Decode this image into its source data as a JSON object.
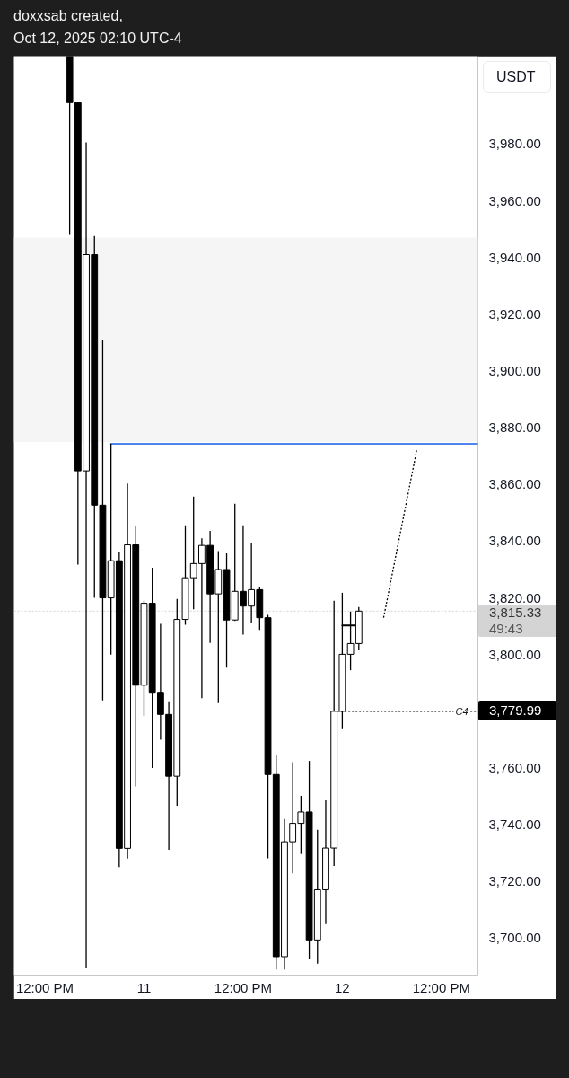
{
  "chart_data": {
    "type": "candlestick",
    "title": "doxxsab created,",
    "subtitle": "Oct 12, 2025 02:10 UTC-4",
    "ylabel": "USDT",
    "x": [
      "2025-10-10T15:00",
      "2025-10-10T16:00",
      "2025-10-10T17:00",
      "2025-10-10T18:00",
      "2025-10-10T19:00",
      "2025-10-10T20:00",
      "2025-10-10T21:00",
      "2025-10-10T22:00",
      "2025-10-10T23:00",
      "2025-10-11T00:00",
      "2025-10-11T01:00",
      "2025-10-11T02:00",
      "2025-10-11T03:00",
      "2025-10-11T04:00",
      "2025-10-11T05:00",
      "2025-10-11T06:00",
      "2025-10-11T07:00",
      "2025-10-11T08:00",
      "2025-10-11T09:00",
      "2025-10-11T10:00",
      "2025-10-11T11:00",
      "2025-10-11T12:00",
      "2025-10-11T13:00",
      "2025-10-11T14:00",
      "2025-10-11T15:00",
      "2025-10-11T16:00",
      "2025-10-11T17:00",
      "2025-10-11T18:00",
      "2025-10-11T19:00",
      "2025-10-11T20:00",
      "2025-10-11T21:00",
      "2025-10-11T22:00",
      "2025-10-11T23:00",
      "2025-10-12T00:00",
      "2025-10-12T01:00",
      "2025-10-12T02:00"
    ],
    "ohlc": [
      [
        4011,
        4011,
        3948,
        3994.6
      ],
      [
        3994.6,
        3994.6,
        3831.7,
        3864.8
      ],
      [
        3864.8,
        3980.6,
        3689.5,
        3941
      ],
      [
        3941,
        3947.6,
        3820,
        3852.7
      ],
      [
        3852.7,
        3911.1,
        3783.8,
        3820
      ],
      [
        3820,
        3874.3,
        3800,
        3833.1
      ],
      [
        3833.1,
        3836,
        3725.1,
        3731.7
      ],
      [
        3731.7,
        3860.3,
        3728.1,
        3838.7
      ],
      [
        3838.7,
        3845.5,
        3753.5,
        3789.2
      ],
      [
        3789.2,
        3819,
        3778.4,
        3818.1
      ],
      [
        3818.1,
        3830.6,
        3760,
        3786.7
      ],
      [
        3786.7,
        3810.8,
        3770,
        3778.9
      ],
      [
        3778.9,
        3783.5,
        3731.2,
        3757.1
      ],
      [
        3757.1,
        3819.6,
        3746.7,
        3812.4
      ],
      [
        3812.4,
        3845.6,
        3810.5,
        3827.1
      ],
      [
        3827.1,
        3855.7,
        3816,
        3832.1
      ],
      [
        3832.1,
        3841,
        3784.6,
        3838.5
      ],
      [
        3838.5,
        3843.6,
        3804.1,
        3821.4
      ],
      [
        3821.4,
        3836.5,
        3782.9,
        3830
      ],
      [
        3830,
        3835.7,
        3795.4,
        3812.2
      ],
      [
        3812.2,
        3853.2,
        3811.9,
        3822.3
      ],
      [
        3822.3,
        3845.6,
        3807,
        3817.1
      ],
      [
        3817.1,
        3839.4,
        3811.1,
        3822.9
      ],
      [
        3822.9,
        3824,
        3808.7,
        3813
      ],
      [
        3813,
        3814,
        3728.2,
        3757.7
      ],
      [
        3757.7,
        3764.7,
        3689,
        3693.5
      ],
      [
        3693.5,
        3742,
        3689,
        3734
      ],
      [
        3734,
        3762.1,
        3722.9,
        3740.5
      ],
      [
        3740.5,
        3750.2,
        3729.7,
        3744.5
      ],
      [
        3744.5,
        3762.5,
        3692.7,
        3699.4
      ],
      [
        3699.4,
        3738.2,
        3691,
        3717.1
      ],
      [
        3717.1,
        3748.6,
        3705,
        3731.8
      ],
      [
        3731.8,
        3819,
        3725.5,
        3780
      ],
      [
        3780,
        3821.8,
        3774,
        3800.1
      ],
      [
        3800.1,
        3815.2,
        3794.5,
        3803.9
      ],
      [
        3803.9,
        3816.8,
        3801.5,
        3815.33
      ]
    ],
    "color": "#000000",
    "colors": [
      "#000000",
      "#000000",
      "#ffffff",
      "#000000",
      "#000000",
      "#ffffff",
      "#000000",
      "#ffffff",
      "#000000",
      "#ffffff",
      "#000000",
      "#000000",
      "#000000",
      "#ffffff",
      "#ffffff",
      "#ffffff",
      "#ffffff",
      "#000000",
      "#ffffff",
      "#000000",
      "#ffffff",
      "#000000",
      "#ffffff",
      "#000000",
      "#000000",
      "#000000",
      "#ffffff",
      "#ffffff",
      "#ffffff",
      "#000000",
      "#ffffff",
      "#ffffff",
      "#ffffff",
      "#ffffff",
      "#ffffff",
      "#ffffff"
    ],
    "series": [
      {
        "type": "line",
        "x": [
          "2025-10-10T20:00",
          "2025-10-12T16:25"
        ],
        "values": [
          3874.3,
          3874.3
        ],
        "color": "#4f84ec"
      },
      {
        "type": "line",
        "name": "C4",
        "x": [
          "2025-10-11T23:00",
          "2025-10-12T16:25"
        ],
        "values": [
          3779.99,
          3779.99
        ],
        "color": "#000000",
        "line_style": "dotted",
        "value_labels": [
          null,
          "3,779.99"
        ]
      },
      {
        "type": "line",
        "x": [
          "2025-10-12T05:00",
          "2025-10-12T09:00"
        ],
        "values": [
          3813,
          3872
        ],
        "color": "#000000",
        "line_style": "dotted"
      },
      {
        "type": "line",
        "x": [
          "2025-10-12T00:00",
          "2025-10-12T01:35"
        ],
        "values": [
          3810.3,
          3810.3
        ],
        "color": "#000000"
      }
    ],
    "bands": [
      {
        "axis": "y",
        "from": 3875,
        "to": 3947,
        "color": "#f5f5f5"
      }
    ],
    "ref_lines": [
      {
        "axis": "y",
        "value": 3815.33,
        "label": "3,815.33",
        "color": "#d4d4d4",
        "line_style": "dotted"
      }
    ],
    "annotations": [
      "49:43"
    ],
    "xlim": [
      "2025-10-10T08:15",
      "2025-10-12T16:25"
    ],
    "xticks": [
      {
        "value": "2025-10-10T12:00",
        "label": "12:00 PM"
      },
      {
        "value": "2025-10-11T00:00",
        "label": "11"
      },
      {
        "value": "2025-10-11T12:00",
        "label": "12:00 PM"
      },
      {
        "value": "2025-10-12T00:00",
        "label": "12"
      },
      {
        "value": "2025-10-12T12:00",
        "label": "12:00 PM"
      }
    ],
    "ylim": [
      3687,
      4011
    ],
    "yticks": [
      {
        "value": 3700,
        "label": "3,700.00"
      },
      {
        "value": 3720,
        "label": "3,720.00"
      },
      {
        "value": 3740,
        "label": "3,740.00"
      },
      {
        "value": 3760,
        "label": "3,760.00"
      },
      {
        "value": 3800,
        "label": "3,800.00"
      },
      {
        "value": 3820,
        "label": "3,820.00"
      },
      {
        "value": 3840,
        "label": "3,840.00"
      },
      {
        "value": 3860,
        "label": "3,860.00"
      },
      {
        "value": 3880,
        "label": "3,880.00"
      },
      {
        "value": 3900,
        "label": "3,900.00"
      },
      {
        "value": 3920,
        "label": "3,920.00"
      },
      {
        "value": 3940,
        "label": "3,940.00"
      },
      {
        "value": 3960,
        "label": "3,960.00"
      },
      {
        "value": 3980,
        "label": "3,980.00"
      }
    ]
  }
}
